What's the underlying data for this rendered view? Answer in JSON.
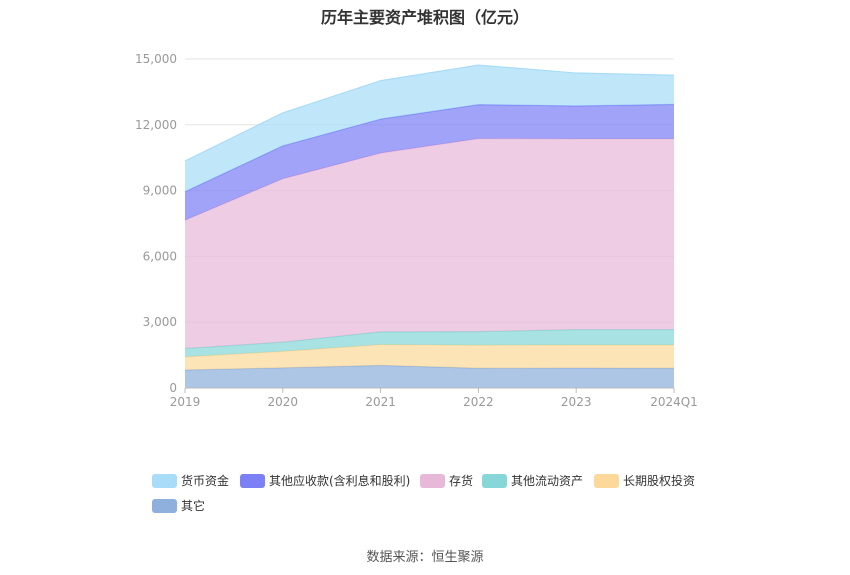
{
  "chart_data": {
    "type": "area",
    "stacked": true,
    "title": "历年主要资产堆积图（亿元）",
    "categories": [
      "2019",
      "2020",
      "2021",
      "2022",
      "2023",
      "2024Q1"
    ],
    "ylim": [
      0,
      15000
    ],
    "yticks": [
      "0",
      "3,000",
      "6,000",
      "9,000",
      "12,000",
      "15,000"
    ],
    "grid": true,
    "legend_position": "bottom",
    "series": [
      {
        "name": "其它",
        "color": "#8fb0dd",
        "values": [
          820,
          920,
          1030,
          900,
          910,
          900
        ]
      },
      {
        "name": "长期股权投资",
        "color": "#fcd99a",
        "values": [
          600,
          750,
          950,
          1050,
          1050,
          1060
        ]
      },
      {
        "name": "其他流动资产",
        "color": "#88d7d8",
        "values": [
          380,
          420,
          580,
          620,
          700,
          700
        ]
      },
      {
        "name": "存货",
        "color": "#e8b8d8",
        "values": [
          5850,
          7450,
          8150,
          8800,
          8700,
          8700
        ]
      },
      {
        "name": "其他应收款(含利息和股利)",
        "color": "#7b80f5",
        "values": [
          1300,
          1500,
          1550,
          1550,
          1500,
          1570
        ]
      },
      {
        "name": "货币资金",
        "color": "#a8dcf8",
        "values": [
          1400,
          1500,
          1750,
          1800,
          1500,
          1330
        ]
      }
    ],
    "legend_order": [
      "货币资金",
      "其他应收款(含利息和股利)",
      "存货",
      "其他流动资产",
      "长期股权投资",
      "其它"
    ]
  },
  "source_text": "数据来源：恒生聚源"
}
